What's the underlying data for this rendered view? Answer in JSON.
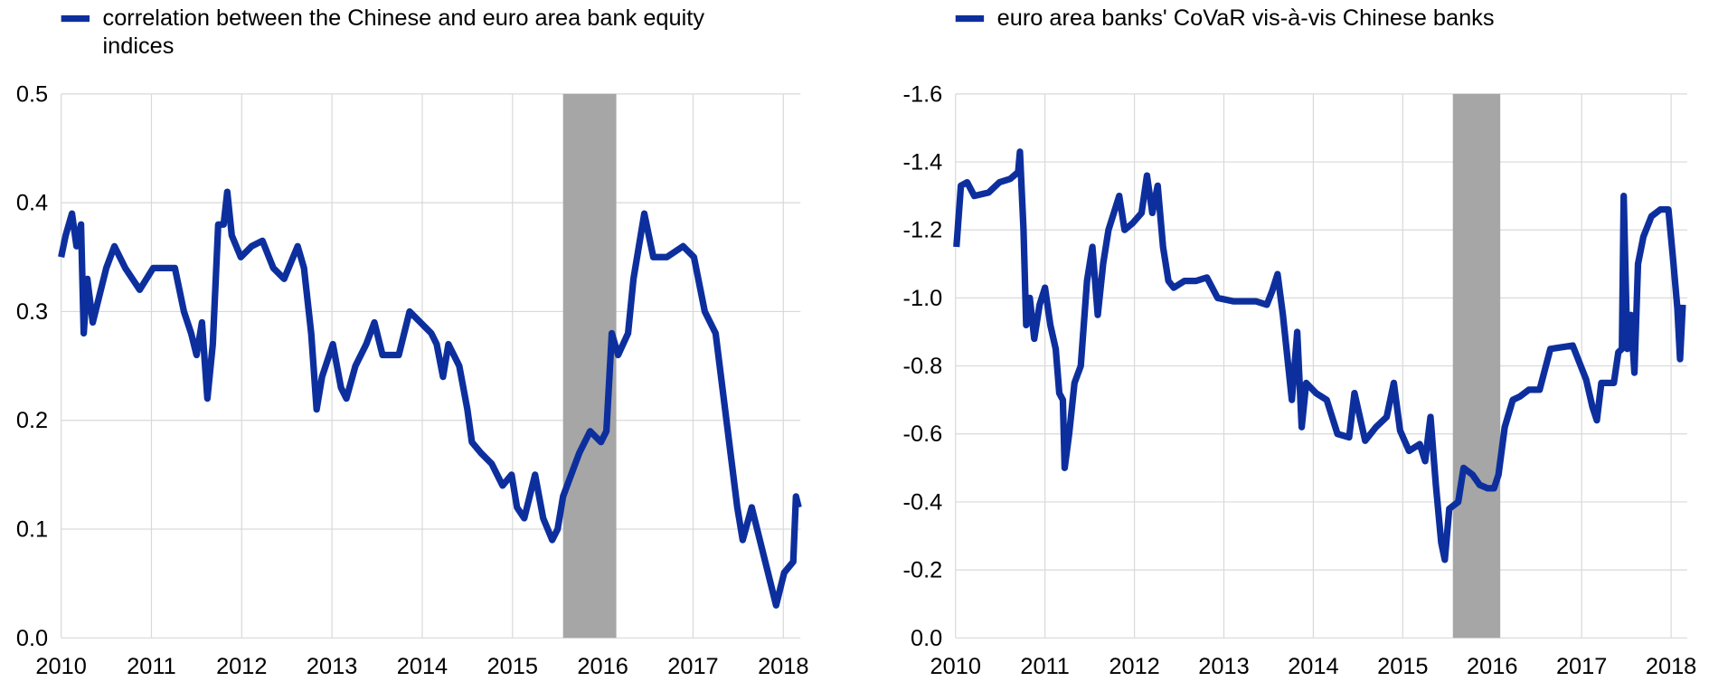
{
  "chart_data": [
    {
      "type": "line",
      "x": [
        2010.0,
        2010.05,
        2010.12,
        2010.17,
        2010.22,
        2010.25,
        2010.29,
        2010.35,
        2010.44,
        2010.5,
        2010.59,
        2010.71,
        2010.87,
        2011.02,
        2011.14,
        2011.26,
        2011.36,
        2011.44,
        2011.5,
        2011.56,
        2011.62,
        2011.68,
        2011.74,
        2011.8,
        2011.84,
        2011.89,
        2011.99,
        2012.11,
        2012.23,
        2012.35,
        2012.47,
        2012.57,
        2012.62,
        2012.69,
        2012.77,
        2012.83,
        2012.89,
        2013.01,
        2013.1,
        2013.16,
        2013.26,
        2013.38,
        2013.47,
        2013.56,
        2013.74,
        2013.86,
        2013.98,
        2014.1,
        2014.16,
        2014.23,
        2014.29,
        2014.41,
        2014.5,
        2014.55,
        2014.65,
        2014.77,
        2014.89,
        2014.99,
        2015.05,
        2015.13,
        2015.25,
        2015.34,
        2015.44,
        2015.5,
        2015.56,
        2015.74,
        2015.86,
        2015.98,
        2016.04,
        2016.1,
        2016.17,
        2016.28,
        2016.34,
        2016.46,
        2016.56,
        2016.71,
        2016.89,
        2017.01,
        2017.13,
        2017.25,
        2017.37,
        2017.49,
        2017.55,
        2017.65,
        2017.8,
        2017.92,
        2018.01,
        2018.11,
        2018.14,
        2018.17
      ],
      "series": [
        {
          "name": "correlation between the Chinese and euro area bank equity indices",
          "color": "#0d2f9e",
          "values": [
            0.35,
            0.37,
            0.39,
            0.36,
            0.38,
            0.28,
            0.33,
            0.29,
            0.32,
            0.34,
            0.36,
            0.34,
            0.32,
            0.34,
            0.34,
            0.34,
            0.3,
            0.28,
            0.26,
            0.29,
            0.22,
            0.27,
            0.38,
            0.38,
            0.41,
            0.37,
            0.35,
            0.36,
            0.365,
            0.34,
            0.33,
            0.35,
            0.36,
            0.34,
            0.28,
            0.21,
            0.24,
            0.27,
            0.23,
            0.22,
            0.25,
            0.27,
            0.29,
            0.26,
            0.26,
            0.3,
            0.29,
            0.28,
            0.27,
            0.24,
            0.27,
            0.25,
            0.21,
            0.18,
            0.17,
            0.16,
            0.14,
            0.15,
            0.12,
            0.11,
            0.15,
            0.11,
            0.09,
            0.1,
            0.13,
            0.17,
            0.19,
            0.18,
            0.19,
            0.28,
            0.26,
            0.28,
            0.33,
            0.39,
            0.35,
            0.35,
            0.36,
            0.35,
            0.3,
            0.28,
            0.2,
            0.12,
            0.09,
            0.12,
            0.07,
            0.03,
            0.06,
            0.07,
            0.13,
            0.12
          ]
        }
      ],
      "shaded_period": [
        2015.56,
        2016.15
      ],
      "xlim": [
        2010,
        2018.19
      ],
      "xticks": [
        2010,
        2011,
        2012,
        2013,
        2014,
        2015,
        2016,
        2017,
        2018
      ],
      "ylim": [
        0,
        0.5
      ],
      "yticks": [
        {
          "value": 0,
          "label": "0.0"
        },
        0.1,
        0.2,
        0.3,
        0.4,
        0.5
      ],
      "grid": true,
      "legend": "top-left",
      "shade_color": "#a6a6a6"
    },
    {
      "type": "line",
      "x": [
        2010.01,
        2010.06,
        2010.13,
        2010.21,
        2010.37,
        2010.49,
        2010.61,
        2010.7,
        2010.72,
        2010.76,
        2010.79,
        2010.83,
        2010.88,
        2010.94,
        2011.0,
        2011.06,
        2011.12,
        2011.16,
        2011.2,
        2011.22,
        2011.27,
        2011.33,
        2011.4,
        2011.47,
        2011.53,
        2011.59,
        2011.65,
        2011.71,
        2011.77,
        2011.83,
        2011.89,
        2011.98,
        2012.08,
        2012.14,
        2012.2,
        2012.26,
        2012.32,
        2012.38,
        2012.44,
        2012.56,
        2012.69,
        2012.81,
        2012.93,
        2013.11,
        2013.36,
        2013.48,
        2013.54,
        2013.6,
        2013.66,
        2013.72,
        2013.76,
        2013.82,
        2013.87,
        2013.92,
        2014.03,
        2014.15,
        2014.27,
        2014.4,
        2014.46,
        2014.58,
        2014.7,
        2014.82,
        2014.9,
        2014.97,
        2015.07,
        2015.19,
        2015.25,
        2015.31,
        2015.37,
        2015.43,
        2015.47,
        2015.52,
        2015.62,
        2015.68,
        2015.78,
        2015.86,
        2015.95,
        2016.02,
        2016.07,
        2016.14,
        2016.23,
        2016.31,
        2016.41,
        2016.53,
        2016.65,
        2016.9,
        2016.96,
        2017.05,
        2017.12,
        2017.17,
        2017.22,
        2017.36,
        2017.41,
        2017.45,
        2017.47,
        2017.51,
        2017.55,
        2017.59,
        2017.63,
        2017.69,
        2017.78,
        2017.88,
        2017.97,
        2018.02,
        2018.07,
        2018.1,
        2018.13
      ],
      "series": [
        {
          "name": "euro area banks' CoVaR vis-à-vis Chinese banks",
          "color": "#0d2f9e",
          "values": [
            -1.15,
            -1.33,
            -1.34,
            -1.3,
            -1.31,
            -1.34,
            -1.35,
            -1.37,
            -1.43,
            -1.2,
            -0.92,
            -1.0,
            -0.88,
            -0.98,
            -1.03,
            -0.92,
            -0.85,
            -0.72,
            -0.7,
            -0.5,
            -0.6,
            -0.75,
            -0.8,
            -1.05,
            -1.15,
            -0.95,
            -1.1,
            -1.2,
            -1.25,
            -1.3,
            -1.2,
            -1.22,
            -1.25,
            -1.36,
            -1.25,
            -1.33,
            -1.15,
            -1.05,
            -1.03,
            -1.05,
            -1.05,
            -1.06,
            -1.0,
            -0.99,
            -0.99,
            -0.98,
            -1.02,
            -1.07,
            -0.95,
            -0.8,
            -0.7,
            -0.9,
            -0.62,
            -0.75,
            -0.72,
            -0.7,
            -0.6,
            -0.59,
            -0.72,
            -0.58,
            -0.62,
            -0.65,
            -0.75,
            -0.61,
            -0.55,
            -0.57,
            -0.52,
            -0.65,
            -0.45,
            -0.28,
            -0.23,
            -0.38,
            -0.4,
            -0.5,
            -0.48,
            -0.45,
            -0.44,
            -0.44,
            -0.48,
            -0.62,
            -0.7,
            -0.71,
            -0.73,
            -0.73,
            -0.85,
            -0.86,
            -0.82,
            -0.76,
            -0.68,
            -0.64,
            -0.75,
            -0.75,
            -0.84,
            -0.85,
            -1.3,
            -0.85,
            -0.95,
            -0.78,
            -1.1,
            -1.18,
            -1.24,
            -1.26,
            -1.26,
            -1.12,
            -0.97,
            -0.82,
            -0.98
          ]
        }
      ],
      "shaded_period": [
        2015.56,
        2016.09
      ],
      "xlim": [
        2010,
        2018.18
      ],
      "xticks": [
        2010,
        2011,
        2012,
        2013,
        2014,
        2015,
        2016,
        2017,
        2018
      ],
      "ylim": [
        0,
        -1.6
      ],
      "yticks": [
        {
          "value": 0,
          "label": "0.0"
        },
        -0.2,
        -0.4,
        -0.6,
        -0.8,
        {
          "value": -1,
          "label": "-1.0"
        },
        -1.2,
        -1.4,
        -1.6
      ],
      "grid": true,
      "legend": "top-left",
      "shade_color": "#a6a6a6"
    }
  ]
}
